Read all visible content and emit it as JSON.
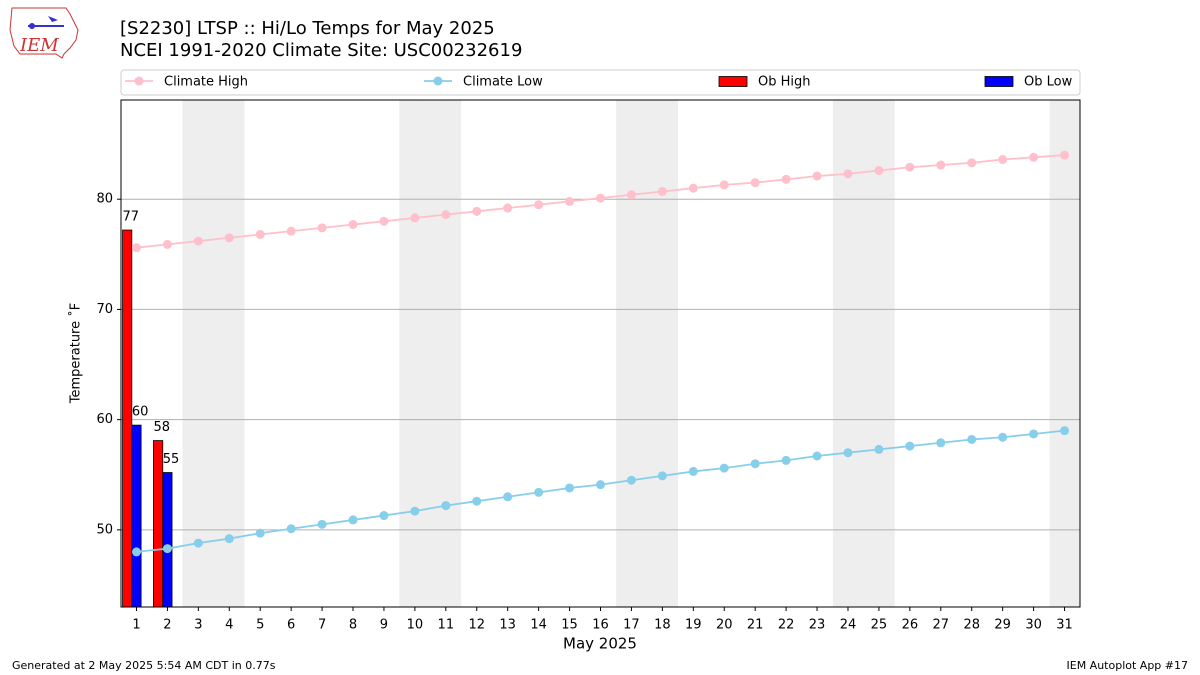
{
  "chart_data": {
    "type": "line",
    "title": "[S2230] LTSP :: Hi/Lo Temps for May 2025",
    "subtitle": "NCEI 1991-2020 Climate Site: USC00232619",
    "xlabel": "May 2025",
    "ylabel": "Temperature ˚F",
    "footer_left": "Generated at 2 May 2025 5:54 AM CDT in 0.77s",
    "footer_right": "IEM Autoplot App #17",
    "x": [
      1,
      2,
      3,
      4,
      5,
      6,
      7,
      8,
      9,
      10,
      11,
      12,
      13,
      14,
      15,
      16,
      17,
      18,
      19,
      20,
      21,
      22,
      23,
      24,
      25,
      26,
      27,
      28,
      29,
      30,
      31
    ],
    "series": [
      {
        "name": "Climate High",
        "type": "line",
        "color": "#ffc0cb",
        "values": [
          75.6,
          75.9,
          76.2,
          76.5,
          76.8,
          77.1,
          77.4,
          77.7,
          78.0,
          78.3,
          78.6,
          78.9,
          79.2,
          79.5,
          79.8,
          80.1,
          80.4,
          80.7,
          81.0,
          81.3,
          81.5,
          81.8,
          82.1,
          82.3,
          82.6,
          82.9,
          83.1,
          83.3,
          83.6,
          83.8,
          84.0
        ]
      },
      {
        "name": "Climate Low",
        "type": "line",
        "color": "#87ceeb",
        "values": [
          48.0,
          48.3,
          48.8,
          49.2,
          49.7,
          50.1,
          50.5,
          50.9,
          51.3,
          51.7,
          52.2,
          52.6,
          53.0,
          53.4,
          53.8,
          54.1,
          54.5,
          54.9,
          55.3,
          55.6,
          56.0,
          56.3,
          56.7,
          57.0,
          57.3,
          57.6,
          57.9,
          58.2,
          58.4,
          58.7,
          59.0
        ]
      },
      {
        "name": "Ob High",
        "type": "bar",
        "color": "#ff0000",
        "values": [
          77.2,
          58.1,
          null,
          null,
          null,
          null,
          null,
          null,
          null,
          null,
          null,
          null,
          null,
          null,
          null,
          null,
          null,
          null,
          null,
          null,
          null,
          null,
          null,
          null,
          null,
          null,
          null,
          null,
          null,
          null,
          null
        ],
        "value_labels": [
          "77",
          "58",
          null,
          null,
          null,
          null,
          null,
          null,
          null,
          null,
          null,
          null,
          null,
          null,
          null,
          null,
          null,
          null,
          null,
          null,
          null,
          null,
          null,
          null,
          null,
          null,
          null,
          null,
          null,
          null,
          null
        ]
      },
      {
        "name": "Ob Low",
        "type": "bar",
        "color": "#0000ff",
        "values": [
          59.5,
          55.2,
          null,
          null,
          null,
          null,
          null,
          null,
          null,
          null,
          null,
          null,
          null,
          null,
          null,
          null,
          null,
          null,
          null,
          null,
          null,
          null,
          null,
          null,
          null,
          null,
          null,
          null,
          null,
          null,
          null
        ],
        "value_labels": [
          "60",
          "55",
          null,
          null,
          null,
          null,
          null,
          null,
          null,
          null,
          null,
          null,
          null,
          null,
          null,
          null,
          null,
          null,
          null,
          null,
          null,
          null,
          null,
          null,
          null,
          null,
          null,
          null,
          null,
          null,
          null
        ]
      }
    ],
    "xlim": [
      0.5,
      31.5
    ],
    "xticks": [
      1,
      2,
      3,
      4,
      5,
      6,
      7,
      8,
      9,
      10,
      11,
      12,
      13,
      14,
      15,
      16,
      17,
      18,
      19,
      20,
      21,
      22,
      23,
      24,
      25,
      26,
      27,
      28,
      29,
      30,
      31
    ],
    "ylim": [
      43,
      89
    ],
    "yticks": [
      50,
      60,
      70,
      80
    ],
    "grid": true,
    "legend": "top"
  }
}
